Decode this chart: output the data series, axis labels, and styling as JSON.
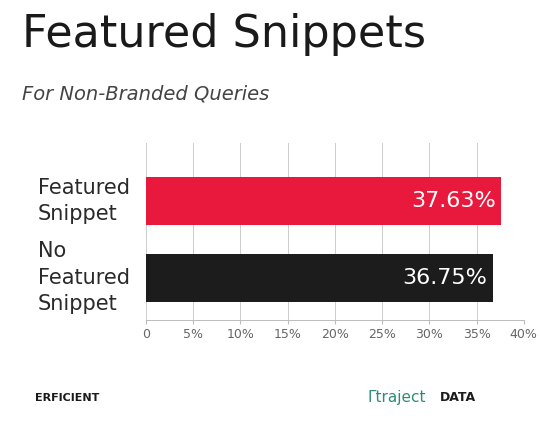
{
  "title": "Featured Snippets",
  "subtitle": "For Non-Branded Queries",
  "categories_top": "Featured\nSnippet",
  "categories_bottom": "No\nFeatured\nSnippet",
  "values": [
    0.3763,
    0.3675
  ],
  "bar_colors": [
    "#e8193c",
    "#1c1c1c"
  ],
  "value_labels": [
    "37.63%",
    "36.75%"
  ],
  "xlim": [
    0,
    0.4
  ],
  "xticks": [
    0,
    0.05,
    0.1,
    0.15,
    0.2,
    0.25,
    0.3,
    0.35,
    0.4
  ],
  "xtick_labels": [
    "0",
    "5%",
    "10%",
    "15%",
    "20%",
    "25%",
    "30%",
    "35%",
    "40%"
  ],
  "background_color": "#ffffff",
  "bar_height": 0.62,
  "label_fontsize": 15,
  "value_fontsize": 16,
  "title_fontsize": 32,
  "subtitle_fontsize": 14,
  "perficient_p_color": "#cc2222",
  "traject_color": "#2e8b7a",
  "data_color": "#1c1c1c"
}
